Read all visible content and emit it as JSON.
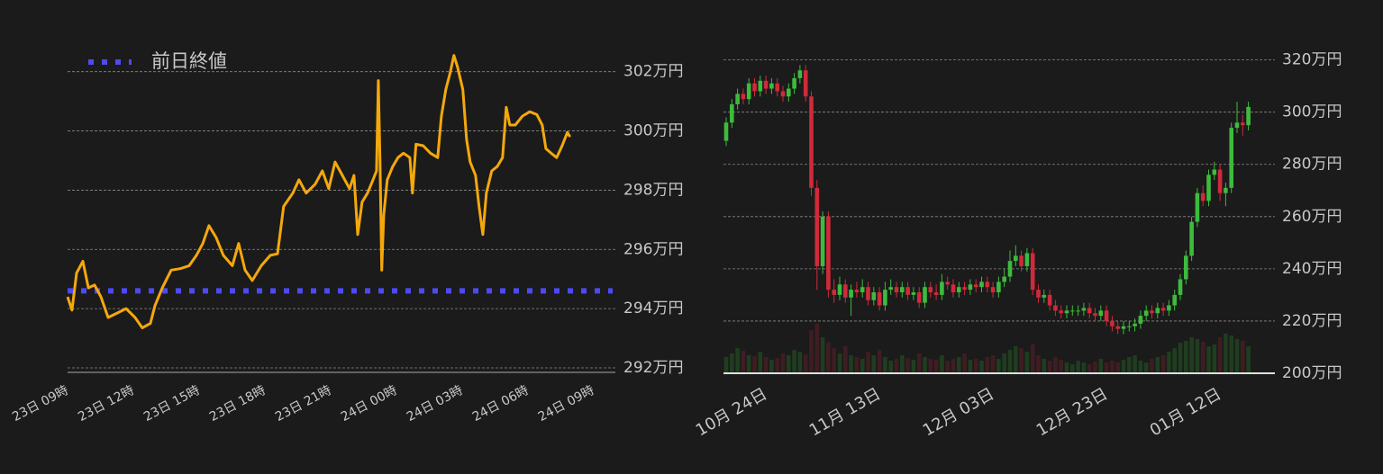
{
  "chart_data": [
    {
      "type": "line",
      "color": "#f5a80c",
      "x": [
        0,
        0.2,
        0.41,
        0.7,
        0.95,
        1.23,
        1.52,
        1.85,
        2.26,
        2.67,
        3.08,
        3.41,
        3.78,
        3.99,
        4.32,
        4.73,
        5.14,
        5.55,
        5.88,
        6.17,
        6.45,
        6.78,
        7.11,
        7.52,
        7.81,
        8.1,
        8.43,
        8.84,
        9.25,
        9.58,
        9.86,
        10.28,
        10.56,
        10.89,
        11.3,
        11.63,
        11.92,
        12.21,
        12.54,
        12.87,
        13.07,
        13.24,
        13.44,
        13.69,
        13.94,
        14.1,
        14.18,
        14.26,
        14.34,
        14.43,
        14.59,
        14.84,
        15.08,
        15.33,
        15.62,
        15.74,
        15.9,
        16.23,
        16.56,
        16.89,
        17.06,
        17.26,
        17.47,
        17.63,
        17.8,
        18.04,
        18.21,
        18.37,
        18.62,
        18.78,
        18.95,
        19.11,
        19.36,
        19.61,
        19.85,
        20.02,
        20.18,
        20.43,
        20.76,
        21.09,
        21.42,
        21.66,
        21.83,
        22.07,
        22.32,
        22.57,
        22.81,
        22.93
      ],
      "values": [
        294.4,
        293.95,
        295.2,
        295.6,
        294.7,
        294.8,
        294.4,
        293.7,
        293.85,
        294.0,
        293.7,
        293.35,
        293.5,
        294.1,
        294.7,
        295.3,
        295.35,
        295.45,
        295.8,
        296.2,
        296.8,
        296.4,
        295.8,
        295.45,
        296.2,
        295.3,
        294.95,
        295.45,
        295.8,
        295.85,
        297.45,
        297.9,
        298.35,
        297.9,
        298.2,
        298.65,
        298.05,
        298.95,
        298.5,
        298.05,
        298.5,
        296.5,
        297.6,
        297.9,
        298.35,
        298.65,
        301.7,
        298.95,
        295.3,
        297.15,
        298.35,
        298.8,
        299.1,
        299.25,
        299.1,
        297.9,
        299.55,
        299.5,
        299.25,
        299.1,
        300.5,
        301.4,
        302.0,
        302.55,
        302.15,
        301.4,
        299.7,
        298.95,
        298.5,
        297.45,
        296.5,
        297.9,
        298.65,
        298.8,
        299.1,
        300.8,
        300.2,
        300.2,
        300.5,
        300.65,
        300.55,
        300.2,
        299.4,
        299.25,
        299.1,
        299.5,
        299.95,
        299.8
      ],
      "reference": {
        "name": "前日終値",
        "value": 294.6,
        "color": "#4b4bf2"
      },
      "xlim": [
        0,
        25
      ],
      "xticks": [
        {
          "value": 0,
          "label": "23日 09時"
        },
        {
          "value": 3,
          "label": "23日 12時"
        },
        {
          "value": 6,
          "label": "23日 15時"
        },
        {
          "value": 9,
          "label": "23日 18時"
        },
        {
          "value": 12,
          "label": "23日 21時"
        },
        {
          "value": 15,
          "label": "24日 00時"
        },
        {
          "value": 18,
          "label": "24日 03時"
        },
        {
          "value": 21,
          "label": "24日 06時"
        },
        {
          "value": 24,
          "label": "24日 09時"
        }
      ],
      "ylim": [
        292,
        302.75
      ],
      "yticks": [
        {
          "value": 292,
          "label": "292万円"
        },
        {
          "value": 294,
          "label": "294万円"
        },
        {
          "value": 296,
          "label": "296万円"
        },
        {
          "value": 298,
          "label": "298万円"
        },
        {
          "value": 300,
          "label": "300万円"
        },
        {
          "value": 302,
          "label": "302万円"
        }
      ],
      "grid": true
    },
    {
      "type": "candlestick",
      "up_color": "#3dbb3d",
      "down_color": "#d02a3a",
      "categories": [
        null,
        null,
        null,
        null,
        null,
        null,
        null,
        "10月 24日",
        null,
        null,
        null,
        null,
        null,
        null,
        null,
        null,
        null,
        null,
        null,
        null,
        null,
        null,
        null,
        null,
        null,
        null,
        null,
        "11月 13日",
        null,
        null,
        null,
        null,
        null,
        null,
        null,
        null,
        null,
        null,
        null,
        null,
        null,
        null,
        null,
        null,
        null,
        null,
        null,
        "12月 03日",
        null,
        null,
        null,
        null,
        null,
        null,
        null,
        null,
        null,
        null,
        null,
        null,
        null,
        null,
        null,
        null,
        null,
        null,
        null,
        "12月 23日",
        null,
        null,
        null,
        null,
        null,
        null,
        null,
        null,
        null,
        null,
        null,
        null,
        null,
        null,
        null,
        null,
        null,
        null,
        null,
        "01月 12日",
        null,
        null,
        null,
        null,
        null
      ],
      "open": [
        289,
        296,
        303,
        307,
        305,
        311,
        308,
        312,
        309,
        311,
        308,
        306,
        309,
        313,
        316,
        306,
        271,
        241,
        260,
        232,
        230,
        234,
        229,
        232,
        231,
        233,
        228,
        231,
        226,
        232,
        233,
        231,
        233,
        230,
        231,
        227,
        233,
        231,
        230,
        235,
        234,
        231,
        233,
        232,
        234,
        233,
        235,
        233,
        231,
        235,
        237,
        243,
        245,
        241,
        246,
        232,
        229,
        230,
        226,
        224,
        223,
        224,
        224,
        224,
        225,
        223,
        222,
        224,
        220,
        218,
        217,
        218,
        218,
        219,
        222,
        224,
        223,
        225,
        224,
        226,
        230,
        236,
        245,
        258,
        269,
        266,
        276,
        278,
        269,
        271,
        294,
        296,
        295
      ],
      "high": [
        298,
        305,
        309,
        309,
        313,
        313,
        314,
        314,
        313,
        313,
        310,
        311,
        315,
        318,
        318,
        308,
        274,
        262,
        262,
        236,
        237,
        236,
        234,
        235,
        236,
        235,
        233,
        233,
        235,
        236,
        235,
        235,
        235,
        233,
        233,
        235,
        235,
        234,
        238,
        237,
        236,
        235,
        235,
        236,
        236,
        237,
        237,
        235,
        237,
        240,
        247,
        249,
        247,
        248,
        248,
        234,
        232,
        232,
        228,
        226,
        226,
        226,
        226,
        227,
        227,
        225,
        226,
        226,
        222,
        220,
        220,
        220,
        221,
        224,
        226,
        226,
        227,
        227,
        228,
        232,
        238,
        247,
        260,
        271,
        272,
        278,
        281,
        280,
        273,
        296,
        304,
        299,
        304
      ],
      "low": [
        287,
        294,
        301,
        303,
        303,
        306,
        306,
        307,
        307,
        306,
        304,
        304,
        307,
        311,
        304,
        268,
        232,
        238,
        229,
        227,
        228,
        227,
        222,
        229,
        229,
        226,
        226,
        224,
        224,
        230,
        229,
        229,
        228,
        228,
        225,
        225,
        229,
        228,
        228,
        232,
        229,
        229,
        230,
        230,
        231,
        231,
        231,
        229,
        229,
        233,
        235,
        241,
        239,
        239,
        230,
        227,
        227,
        224,
        222,
        221,
        221,
        222,
        222,
        222,
        221,
        220,
        220,
        218,
        216,
        215,
        215,
        216,
        216,
        217,
        220,
        221,
        221,
        222,
        222,
        224,
        228,
        234,
        243,
        256,
        264,
        264,
        274,
        266,
        264,
        269,
        292,
        291,
        293
      ],
      "close": [
        296,
        303,
        307,
        305,
        311,
        308,
        312,
        309,
        311,
        308,
        306,
        309,
        313,
        316,
        306,
        271,
        241,
        260,
        232,
        230,
        234,
        229,
        232,
        231,
        233,
        228,
        231,
        226,
        232,
        233,
        231,
        233,
        230,
        231,
        227,
        233,
        231,
        230,
        235,
        234,
        231,
        233,
        232,
        234,
        233,
        235,
        233,
        231,
        235,
        237,
        243,
        245,
        241,
        246,
        232,
        229,
        230,
        226,
        224,
        223,
        224,
        224,
        224,
        225,
        223,
        222,
        224,
        220,
        218,
        217,
        218,
        218,
        219,
        222,
        224,
        223,
        225,
        224,
        226,
        230,
        236,
        245,
        258,
        269,
        266,
        276,
        278,
        269,
        271,
        294,
        296,
        295,
        302
      ],
      "volume": [
        18,
        22,
        28,
        25,
        20,
        19,
        24,
        18,
        15,
        17,
        22,
        20,
        26,
        24,
        21,
        48,
        55,
        40,
        34,
        28,
        22,
        30,
        20,
        18,
        16,
        24,
        20,
        26,
        18,
        14,
        16,
        20,
        17,
        15,
        22,
        18,
        16,
        15,
        20,
        14,
        16,
        18,
        22,
        15,
        16,
        14,
        18,
        20,
        16,
        22,
        26,
        30,
        28,
        24,
        32,
        20,
        16,
        14,
        18,
        15,
        12,
        10,
        14,
        12,
        10,
        13,
        16,
        12,
        14,
        12,
        15,
        18,
        20,
        14,
        12,
        16,
        18,
        20,
        24,
        28,
        34,
        36,
        40,
        38,
        35,
        30,
        32,
        40,
        44,
        42,
        38,
        36,
        30
      ],
      "ylim": [
        200,
        324
      ],
      "yticks": [
        {
          "value": 200,
          "label": "200万円"
        },
        {
          "value": 220,
          "label": "220万円"
        },
        {
          "value": 240,
          "label": "240万円"
        },
        {
          "value": 260,
          "label": "260万円"
        },
        {
          "value": 280,
          "label": "280万円"
        },
        {
          "value": 300,
          "label": "300万円"
        },
        {
          "value": 320,
          "label": "320万円"
        }
      ],
      "grid": true
    }
  ]
}
